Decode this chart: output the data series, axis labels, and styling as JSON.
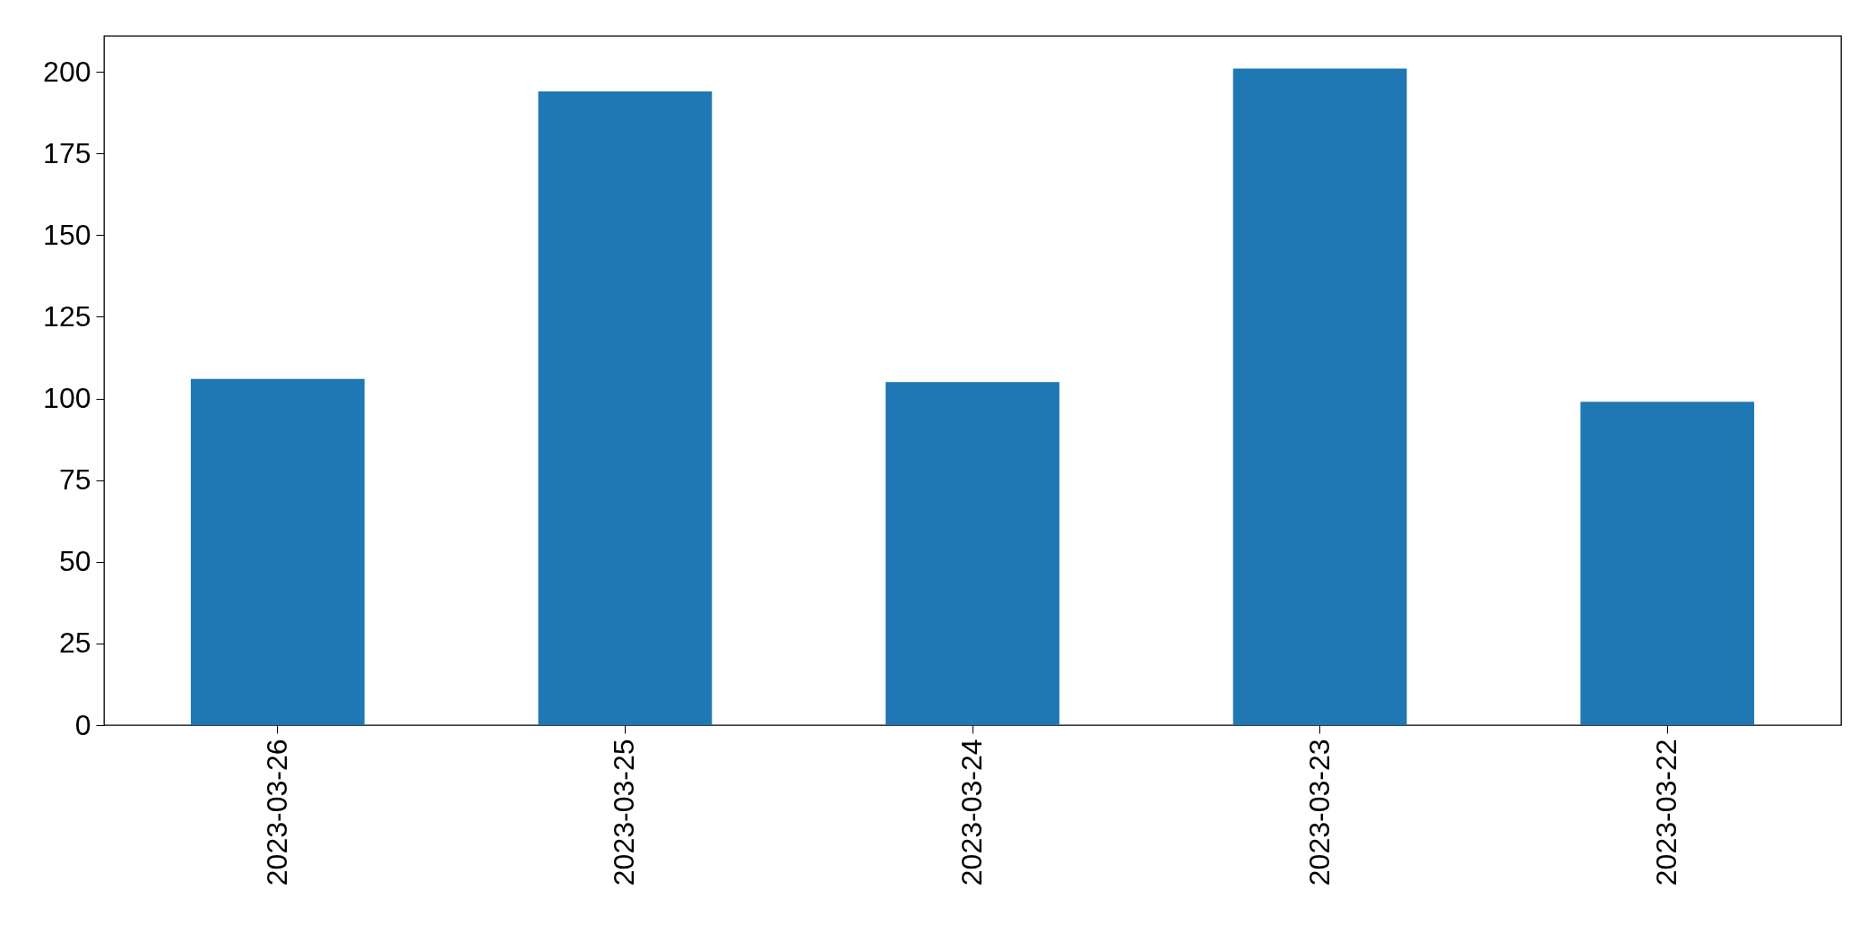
{
  "chart_data": {
    "type": "bar",
    "categories": [
      "2023-03-26",
      "2023-03-25",
      "2023-03-24",
      "2023-03-23",
      "2023-03-22"
    ],
    "values": [
      106,
      194,
      105,
      201,
      99
    ],
    "color": "#1f77b4",
    "ylim": [
      0,
      211
    ],
    "yticks": [
      0,
      25,
      50,
      75,
      100,
      125,
      150,
      175,
      200
    ],
    "grid": false,
    "legend": false
  }
}
